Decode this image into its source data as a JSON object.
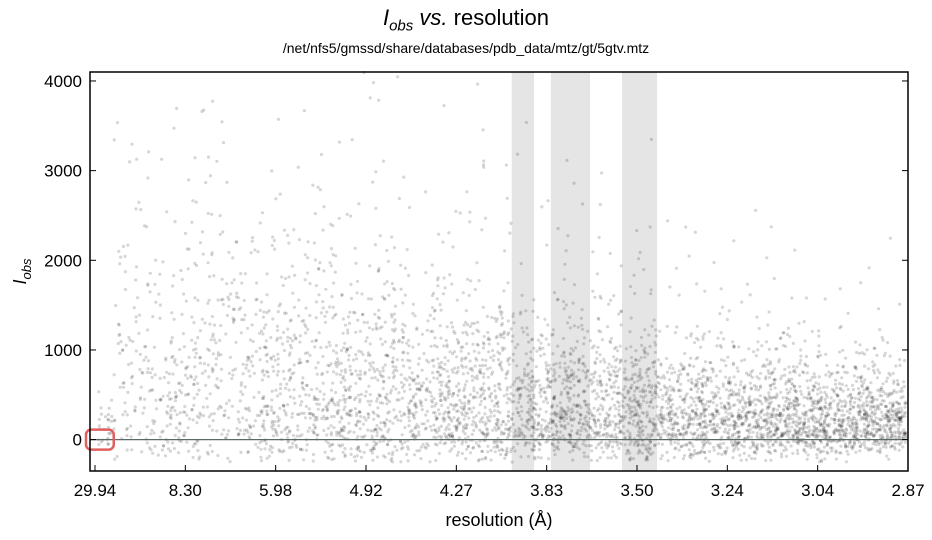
{
  "chart_data": {
    "type": "scatter",
    "title": {
      "i": "I",
      "sub": "obs",
      "vs": "vs.",
      "rest": "resolution"
    },
    "subtitle": "/net/nfs5/gmssd/share/databases/pdb_data/mtz/gt/5gtv.mtz",
    "xlabel": "resolution (Å)",
    "ylabel": {
      "main": "I",
      "sub": "obs"
    },
    "x_ticks": [
      "29.94",
      "8.30",
      "5.98",
      "4.92",
      "4.27",
      "3.83",
      "3.50",
      "3.24",
      "3.04",
      "2.87"
    ],
    "y_ticks": [
      0,
      1000,
      2000,
      3000,
      4000
    ],
    "ylim": [
      -350,
      4100
    ],
    "xlim_resolution": [
      29.94,
      2.87
    ],
    "shaded_bands_resolution": [
      [
        3.98,
        3.88
      ],
      [
        3.81,
        3.66
      ],
      [
        3.55,
        3.44
      ]
    ],
    "highlight_region_resolution": [
      29.94,
      27.0
    ],
    "point_color": "#000000",
    "band_color": "#dcdcdc",
    "highlight_color": "#e06060"
  }
}
